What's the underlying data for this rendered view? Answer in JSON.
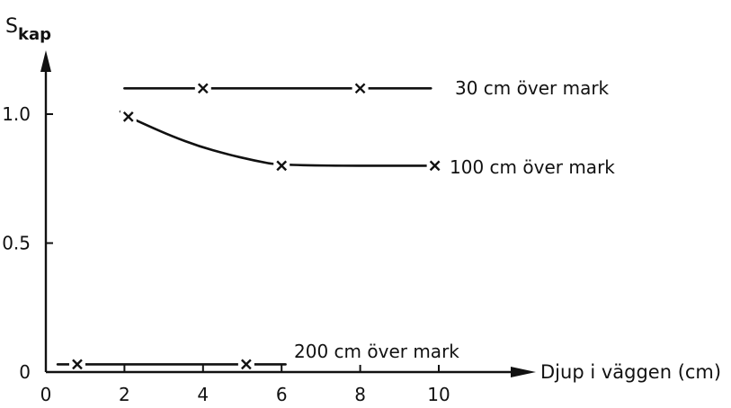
{
  "chart_data": {
    "type": "line",
    "ylabel_main": "S",
    "ylabel_sub": "kap",
    "xlabel": "Djup i väggen (cm)",
    "xlim": [
      0,
      11.8
    ],
    "ylim": [
      0,
      1.25
    ],
    "xticks": [
      {
        "value": 0,
        "label": "0"
      },
      {
        "value": 2,
        "label": "2"
      },
      {
        "value": 4,
        "label": "4"
      },
      {
        "value": 6,
        "label": "6"
      },
      {
        "value": 8,
        "label": "8"
      },
      {
        "value": 10,
        "label": "10"
      }
    ],
    "yticks": [
      {
        "value": 0,
        "label": "0"
      },
      {
        "value": 0.5,
        "label": "0.5"
      },
      {
        "value": 1.0,
        "label": "1.0"
      }
    ],
    "grid": false,
    "series": [
      {
        "name": "30 cm över mark",
        "line": [
          [
            2.0,
            1.1
          ],
          [
            9.8,
            1.1
          ]
        ],
        "markers": [
          [
            4.0,
            1.1
          ],
          [
            8.0,
            1.1
          ]
        ]
      },
      {
        "name": "100 cm över mark",
        "line": [
          [
            1.9,
            1.01
          ],
          [
            2.1,
            0.99
          ],
          [
            2.6,
            0.955
          ],
          [
            3.2,
            0.915
          ],
          [
            3.9,
            0.875
          ],
          [
            4.6,
            0.845
          ],
          [
            5.3,
            0.82
          ],
          [
            6.0,
            0.8
          ],
          [
            9.9,
            0.8
          ]
        ],
        "markers": [
          [
            2.1,
            0.99
          ],
          [
            6.0,
            0.8
          ],
          [
            9.9,
            0.8
          ]
        ]
      },
      {
        "name": "200 cm över mark",
        "line": [
          [
            0.3,
            0.03
          ],
          [
            6.1,
            0.03
          ]
        ],
        "markers": [
          [
            0.8,
            0.03
          ],
          [
            5.1,
            0.03
          ]
        ]
      }
    ]
  }
}
